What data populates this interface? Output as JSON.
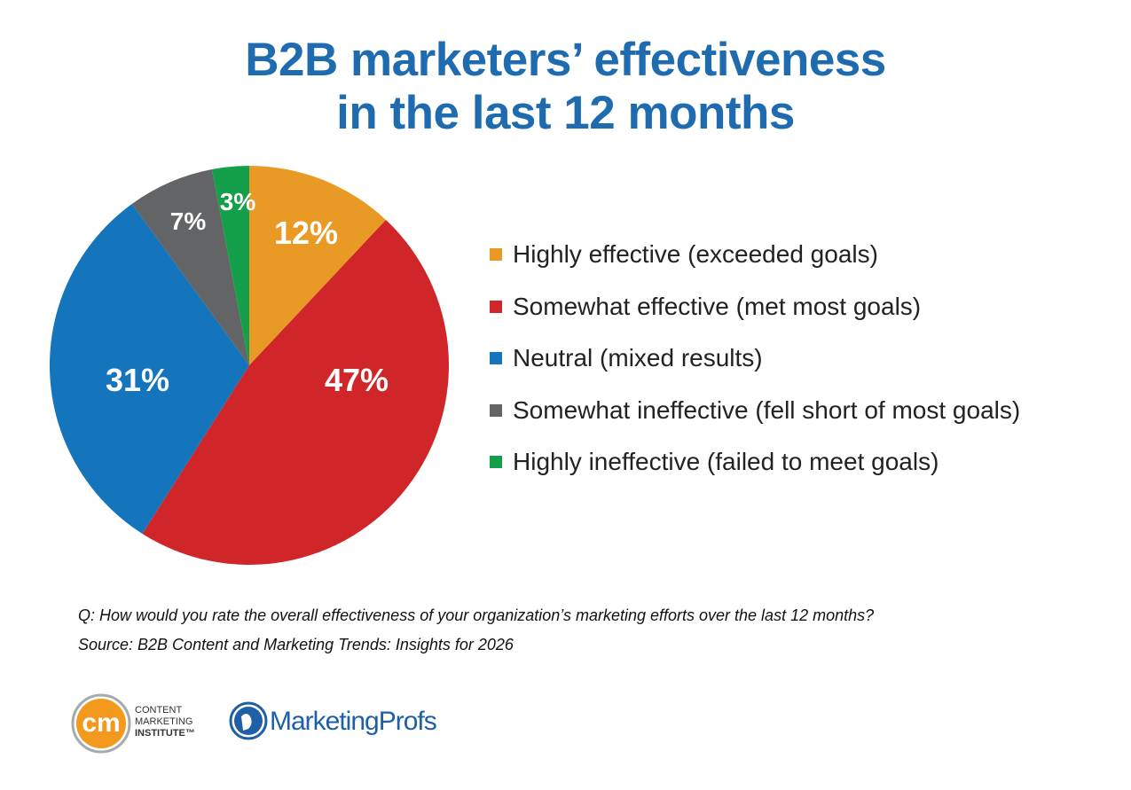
{
  "title_line1": "B2B marketers’ effectiveness",
  "title_line2": "in the last 12 months",
  "chart_data": {
    "type": "pie",
    "title": "B2B marketers’ effectiveness in the last 12 months",
    "categories": [
      "Highly effective (exceeded goals)",
      "Somewhat effective (met most goals)",
      "Neutral (mixed results)",
      "Somewhat ineffective (fell short of most goals)",
      "Highly ineffective (failed to meet goals)"
    ],
    "values": [
      12,
      47,
      31,
      7,
      3
    ],
    "labels": [
      "12%",
      "47%",
      "31%",
      "7%",
      "3%"
    ],
    "colors": [
      "#E99A24",
      "#D0262A",
      "#1474BC",
      "#636466",
      "#14A04B"
    ],
    "legend_position": "right"
  },
  "footnote": {
    "question": "Q: How would you rate the overall effectiveness of your organization’s marketing efforts over the last 12 months?",
    "source": "Source: B2B Content and Marketing Trends: Insights for 2026"
  },
  "logos": {
    "cmi": {
      "mark": "cm",
      "line1": "CONTENT",
      "line2": "MARKETING",
      "line3": "INSTITUTE™"
    },
    "marketingprofs": "MarketingProfs"
  }
}
